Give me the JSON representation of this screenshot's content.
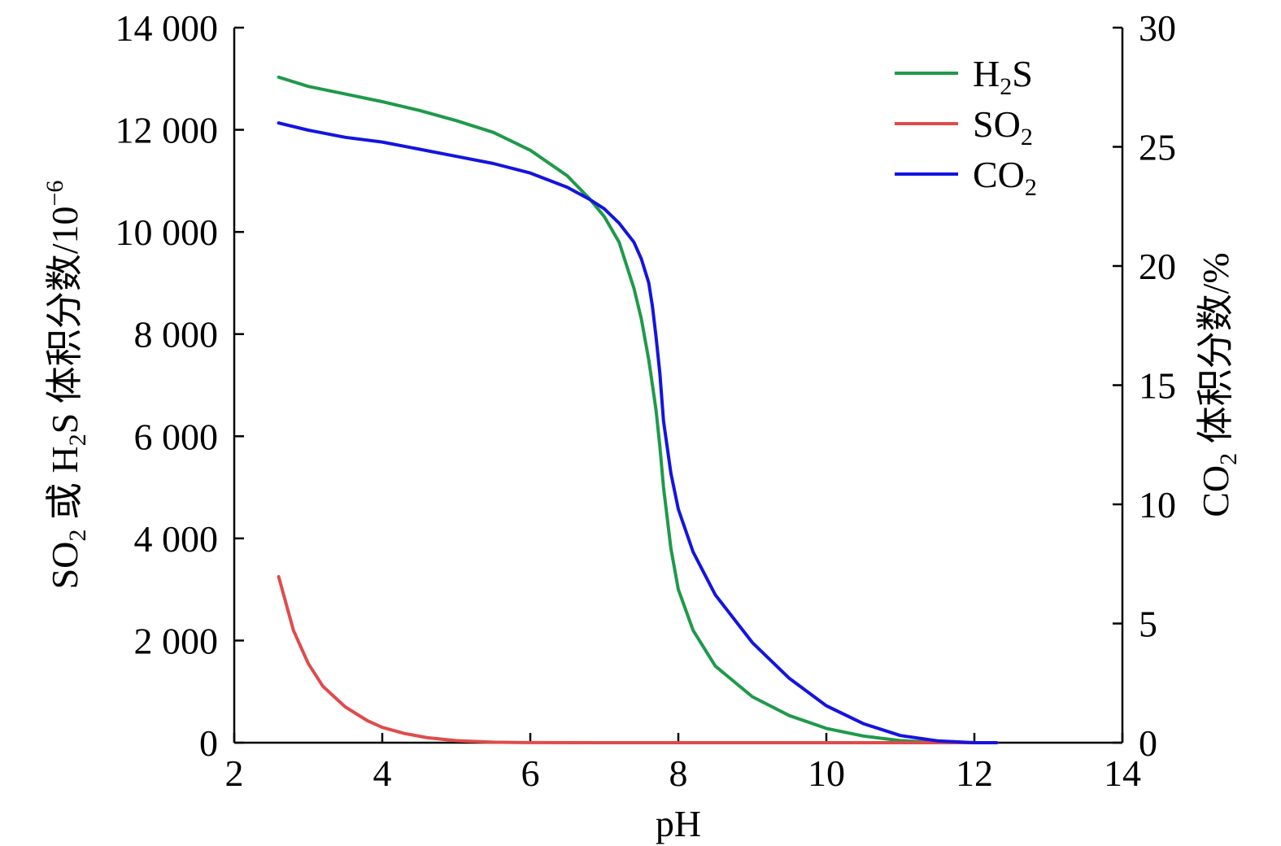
{
  "chart_data": {
    "type": "line",
    "xlabel": "pH",
    "ylabel_left": {
      "main": "SO",
      "sub": "2",
      "mid": " 或 H",
      "sub2": "2",
      "tail": "S 体积分数/10",
      "sup": "−6"
    },
    "ylabel_right": {
      "main": "CO",
      "sub": "2",
      "tail": " 体积分数/%"
    },
    "xlim": [
      2,
      14
    ],
    "ylim_left": [
      0,
      14000
    ],
    "ylim_right": [
      0,
      30
    ],
    "x_ticks": [
      "2",
      "4",
      "6",
      "8",
      "10",
      "12",
      "14"
    ],
    "x_tick_values": [
      2,
      4,
      6,
      8,
      10,
      12,
      14
    ],
    "y_left_ticks": [
      "0",
      "2 000",
      "4 000",
      "6 000",
      "8 000",
      "10 000",
      "12 000",
      "14 000"
    ],
    "y_left_tick_values": [
      0,
      2000,
      4000,
      6000,
      8000,
      10000,
      12000,
      14000
    ],
    "y_right_ticks": [
      "0",
      "5",
      "10",
      "15",
      "20",
      "25",
      "30"
    ],
    "y_right_tick_values": [
      0,
      5,
      10,
      15,
      20,
      25,
      30
    ],
    "legend_position": "top-right",
    "series": [
      {
        "name": "H₂S",
        "label_main": "H",
        "label_sub": "2",
        "label_tail": "S",
        "axis": "left",
        "color": "#1e9a4a",
        "x": [
          2.6,
          3.0,
          3.5,
          4.0,
          4.5,
          5.0,
          5.5,
          6.0,
          6.5,
          6.8,
          7.0,
          7.2,
          7.4,
          7.5,
          7.6,
          7.65,
          7.7,
          7.75,
          7.8,
          7.9,
          8.0,
          8.2,
          8.5,
          9.0,
          9.5,
          10.0,
          10.5,
          11.0,
          11.5,
          12.0,
          12.3
        ],
        "y": [
          13030,
          12850,
          12700,
          12550,
          12380,
          12180,
          11950,
          11600,
          11100,
          10650,
          10300,
          9800,
          8900,
          8300,
          7500,
          7000,
          6500,
          5800,
          5000,
          3800,
          3000,
          2200,
          1500,
          900,
          530,
          280,
          130,
          40,
          5,
          0,
          0
        ]
      },
      {
        "name": "SO₂",
        "label_main": "SO",
        "label_sub": "2",
        "label_tail": "",
        "axis": "left",
        "color": "#e04b4b",
        "x": [
          2.6,
          2.8,
          3.0,
          3.2,
          3.5,
          3.8,
          4.0,
          4.3,
          4.6,
          5.0,
          5.5,
          6.0,
          7.0,
          8.0,
          9.0,
          10.0,
          11.0,
          12.0,
          12.3
        ],
        "y": [
          3250,
          2200,
          1550,
          1100,
          700,
          430,
          300,
          180,
          100,
          40,
          10,
          2,
          0,
          0,
          0,
          0,
          0,
          0,
          0
        ]
      },
      {
        "name": "CO₂",
        "label_main": "CO",
        "label_sub": "2",
        "label_tail": "",
        "axis": "right",
        "color": "#1414e0",
        "x": [
          2.6,
          3.0,
          3.5,
          4.0,
          4.5,
          5.0,
          5.5,
          6.0,
          6.5,
          6.8,
          7.0,
          7.2,
          7.4,
          7.5,
          7.6,
          7.65,
          7.7,
          7.75,
          7.8,
          7.9,
          8.0,
          8.2,
          8.5,
          9.0,
          9.5,
          10.0,
          10.5,
          11.0,
          11.5,
          12.0,
          12.3
        ],
        "y": [
          26.0,
          25.7,
          25.4,
          25.2,
          24.9,
          24.6,
          24.3,
          23.9,
          23.3,
          22.8,
          22.4,
          21.8,
          21.0,
          20.3,
          19.3,
          18.3,
          17.0,
          15.5,
          13.5,
          11.3,
          9.8,
          8.0,
          6.2,
          4.2,
          2.7,
          1.55,
          0.8,
          0.3,
          0.08,
          0,
          0
        ]
      }
    ]
  }
}
